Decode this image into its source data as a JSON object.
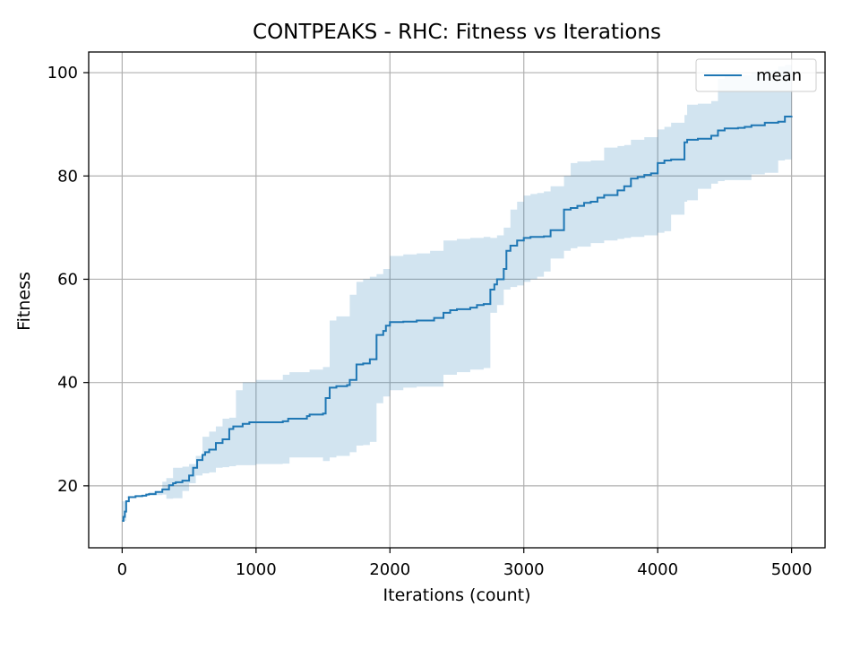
{
  "chart_data": {
    "type": "line",
    "title": "CONTPEAKS - RHC: Fitness vs Iterations",
    "xlabel": "Iterations (count)",
    "ylabel": "Fitness",
    "xlim": [
      -250,
      5250
    ],
    "ylim": [
      8,
      104
    ],
    "xticks": [
      0,
      1000,
      2000,
      3000,
      4000,
      5000
    ],
    "yticks": [
      20,
      40,
      60,
      80,
      100
    ],
    "grid": true,
    "legend_position": "top-right",
    "series": [
      {
        "name": "mean",
        "color": "#1f77b4",
        "x": [
          0,
          10,
          20,
          30,
          50,
          100,
          150,
          180,
          200,
          250,
          300,
          350,
          380,
          400,
          450,
          500,
          530,
          560,
          600,
          620,
          650,
          700,
          750,
          800,
          830,
          900,
          950,
          1000,
          1200,
          1240,
          1380,
          1400,
          1500,
          1520,
          1550,
          1600,
          1680,
          1700,
          1750,
          1800,
          1850,
          1900,
          1950,
          1970,
          2000,
          2100,
          2200,
          2300,
          2330,
          2400,
          2450,
          2500,
          2600,
          2650,
          2700,
          2750,
          2780,
          2800,
          2850,
          2870,
          2900,
          2950,
          3000,
          3050,
          3150,
          3200,
          3300,
          3350,
          3400,
          3450,
          3500,
          3550,
          3600,
          3700,
          3750,
          3800,
          3850,
          3900,
          3950,
          4000,
          4050,
          4100,
          4200,
          4220,
          4250,
          4300,
          4400,
          4450,
          4500,
          4600,
          4650,
          4700,
          4800,
          4900,
          4950,
          5000
        ],
        "y": [
          13.2,
          14,
          15,
          17,
          17.8,
          18,
          18.1,
          18.3,
          18.4,
          18.8,
          19.3,
          20.1,
          20.5,
          20.7,
          21,
          22,
          23.5,
          25,
          26,
          26.5,
          27,
          28.3,
          29,
          31,
          31.5,
          32,
          32.3,
          32.3,
          32.5,
          33,
          33.5,
          33.8,
          34,
          37,
          39,
          39.3,
          39.5,
          40.5,
          43.5,
          43.7,
          44.5,
          49.2,
          50,
          51,
          51.7,
          51.8,
          52,
          52,
          52.5,
          53.5,
          54,
          54.2,
          54.5,
          55,
          55.2,
          58,
          59,
          60,
          62,
          65.5,
          66.5,
          67.5,
          68,
          68.2,
          68.3,
          69.5,
          73.5,
          73.8,
          74.2,
          74.8,
          75,
          75.8,
          76.3,
          77.2,
          78,
          79.5,
          79.8,
          80.2,
          80.5,
          82.5,
          83,
          83.2,
          86.5,
          87,
          87,
          87.2,
          87.8,
          88.8,
          89.2,
          89.3,
          89.5,
          89.8,
          90.3,
          90.5,
          91.5,
          91.6
        ]
      }
    ],
    "band": {
      "x": [
        0,
        30,
        100,
        200,
        300,
        330,
        380,
        450,
        500,
        550,
        600,
        650,
        700,
        750,
        800,
        850,
        900,
        1000,
        1200,
        1250,
        1400,
        1500,
        1550,
        1600,
        1700,
        1750,
        1800,
        1850,
        1900,
        1950,
        2000,
        2100,
        2200,
        2300,
        2400,
        2500,
        2600,
        2700,
        2750,
        2800,
        2850,
        2900,
        2950,
        3000,
        3050,
        3100,
        3150,
        3200,
        3300,
        3350,
        3400,
        3500,
        3600,
        3700,
        3750,
        3800,
        3900,
        4000,
        4050,
        4100,
        4200,
        4220,
        4300,
        4400,
        4450,
        4500,
        4600,
        4700,
        4800,
        4900,
        4950,
        5000
      ],
      "lower": [
        13.2,
        17,
        17.8,
        18,
        18.2,
        18.3,
        17.5,
        17.6,
        19,
        20.5,
        22,
        22.4,
        22.6,
        23.5,
        23.6,
        23.8,
        24,
        24,
        24.2,
        24.3,
        25.5,
        25.5,
        24.8,
        25.5,
        25.8,
        26.5,
        27.8,
        27.9,
        28.5,
        36,
        37.3,
        38.5,
        39,
        39.2,
        39.2,
        41.5,
        42,
        42.5,
        42.8,
        53.5,
        55,
        58,
        58.5,
        58.8,
        59.5,
        60,
        60.5,
        61.5,
        64,
        65.5,
        66,
        66.3,
        67,
        67.5,
        67.8,
        68,
        68.2,
        68.5,
        69,
        69.3,
        72.5,
        75,
        75.3,
        77.5,
        78.5,
        79,
        79.2,
        79.2,
        80.3,
        80.6,
        83,
        83.2
      ],
      "upper": [
        13.2,
        17.9,
        18,
        18.8,
        20.8,
        21.5,
        23.5,
        23.7,
        24.2,
        25.8,
        29.5,
        30.5,
        31.5,
        33,
        33.2,
        38.5,
        40,
        40.5,
        41.5,
        42,
        42.5,
        43,
        52,
        52.8,
        57,
        59.5,
        60,
        60.5,
        61,
        62,
        64.5,
        64.8,
        65,
        65.5,
        67.5,
        67.8,
        68,
        68.2,
        68,
        68.5,
        70,
        73.5,
        75,
        76.2,
        76.5,
        76.7,
        77,
        78,
        80,
        82.5,
        82.8,
        83,
        85.5,
        85.8,
        86,
        87,
        87.5,
        89,
        89.5,
        90.3,
        91.8,
        93.8,
        94,
        94.5,
        98.8,
        99.4,
        99.5,
        100,
        100.5,
        101.2,
        101.5,
        101.6
      ]
    }
  }
}
